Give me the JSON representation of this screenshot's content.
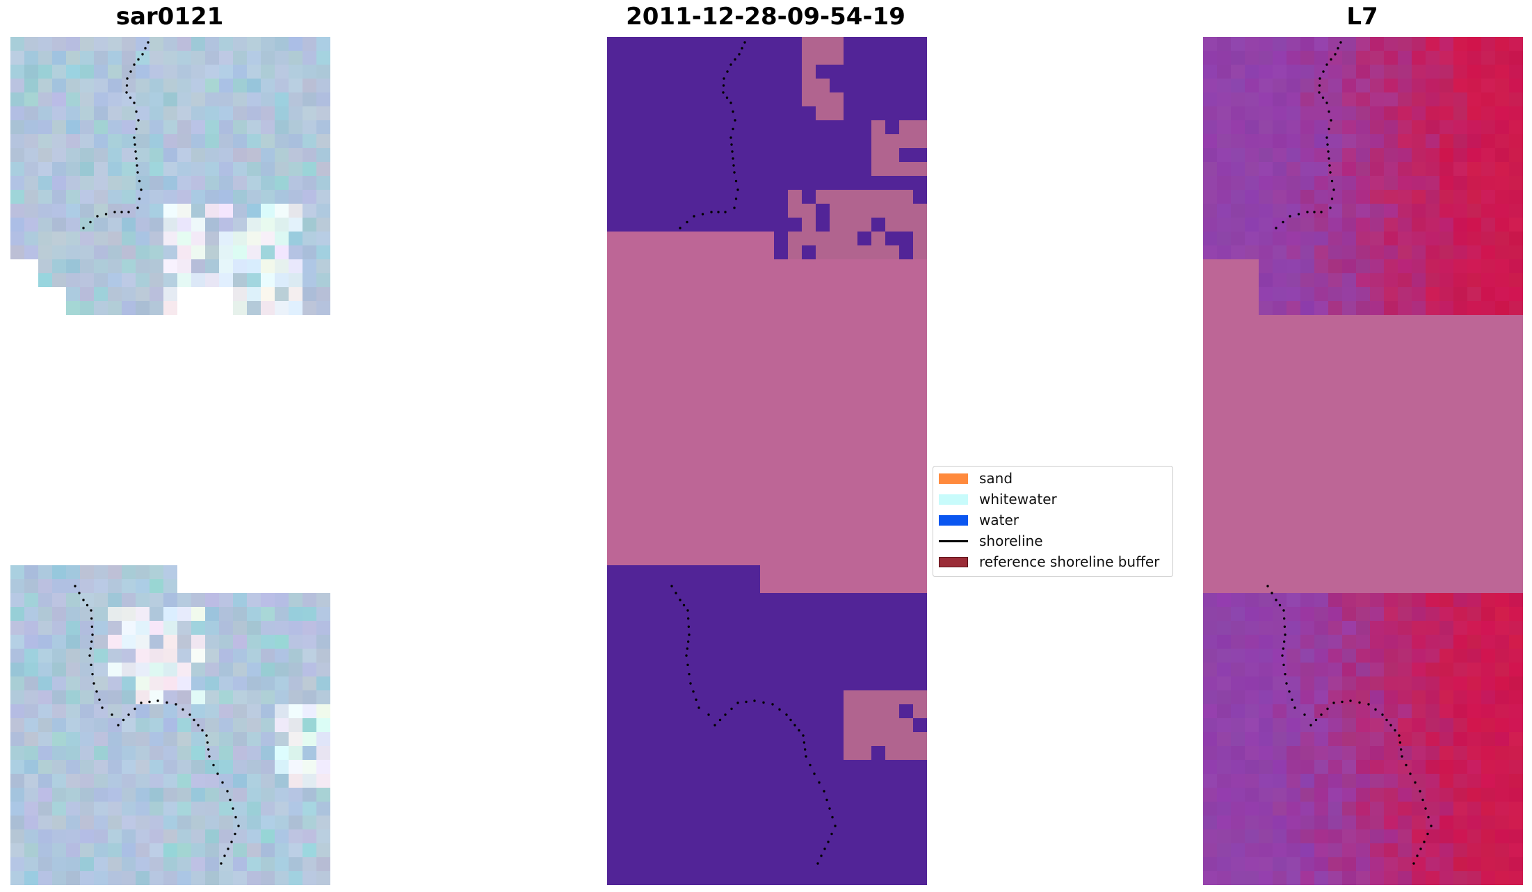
{
  "panels": [
    {
      "title": "sar0121"
    },
    {
      "title": "2011-12-28-09-54-19"
    },
    {
      "title": "L7"
    }
  ],
  "legend": {
    "items": [
      {
        "label": "sand",
        "color": "#ff8a3d",
        "kind": "patch"
      },
      {
        "label": "whitewater",
        "color": "#c8fbfb",
        "kind": "patch"
      },
      {
        "label": "water",
        "color": "#0a56f0",
        "kind": "patch"
      },
      {
        "label": "shoreline",
        "color": "#000000",
        "kind": "line"
      },
      {
        "label": "reference shoreline buffer",
        "color": "#9b2d38",
        "kind": "patch-outlined"
      }
    ]
  },
  "colors": {
    "nodata_pink": "#bd6696",
    "class_water_purple": "#522497",
    "class_other_pink": "#b1648f",
    "rgb_base": "#a8c0d8",
    "l7_purple": "#8f3fa0",
    "l7_red": "#c61a4e"
  }
}
